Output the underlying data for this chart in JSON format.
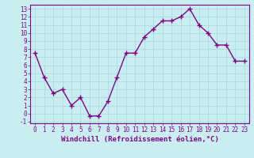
{
  "x": [
    0,
    1,
    2,
    3,
    4,
    5,
    6,
    7,
    8,
    9,
    10,
    11,
    12,
    13,
    14,
    15,
    16,
    17,
    18,
    19,
    20,
    21,
    22,
    23
  ],
  "y": [
    7.5,
    4.5,
    2.5,
    3.0,
    1.0,
    2.0,
    -0.3,
    -0.3,
    1.5,
    4.5,
    7.5,
    7.5,
    9.5,
    10.5,
    11.5,
    11.5,
    12.0,
    13.0,
    11.0,
    10.0,
    8.5,
    8.5,
    6.5,
    6.5
  ],
  "line_color": "#880088",
  "marker": "+",
  "markersize": 4,
  "linewidth": 1.0,
  "background_color": "#c8eef0",
  "grid_color": "#aadddd",
  "xlabel": "Windchill (Refroidissement éolien,°C)",
  "xlim": [
    -0.5,
    23.5
  ],
  "ylim": [
    -1.2,
    13.5
  ],
  "yticks": [
    -1,
    0,
    1,
    2,
    3,
    4,
    5,
    6,
    7,
    8,
    9,
    10,
    11,
    12,
    13
  ],
  "xticks": [
    0,
    1,
    2,
    3,
    4,
    5,
    6,
    7,
    8,
    9,
    10,
    11,
    12,
    13,
    14,
    15,
    16,
    17,
    18,
    19,
    20,
    21,
    22,
    23
  ],
  "tick_fontsize": 5.5,
  "xlabel_fontsize": 6.5,
  "spine_color": "#880088",
  "tick_color": "#880088"
}
